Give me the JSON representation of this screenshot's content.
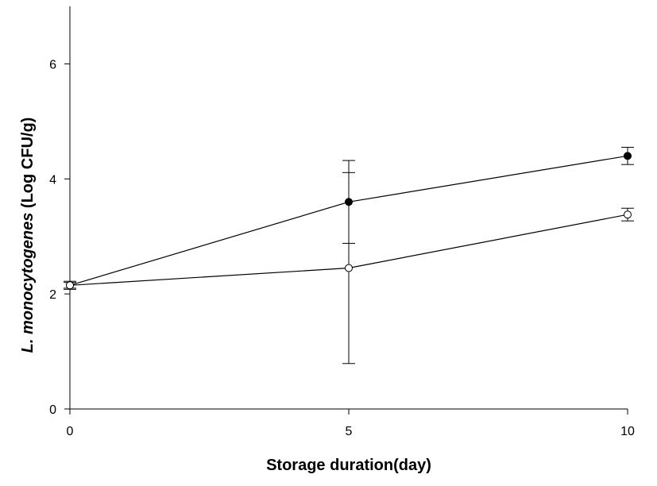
{
  "chart_data": {
    "type": "line",
    "xlabel": "Storage duration(day)",
    "ylabel_italic": "L. monocytogenes",
    "ylabel_rest": " (Log CFU/g)",
    "xlim": [
      0,
      10
    ],
    "ylim": [
      0,
      7
    ],
    "x_ticks": [
      0,
      5,
      10
    ],
    "y_ticks": [
      0,
      2,
      4,
      6
    ],
    "grid": false,
    "legend": "none",
    "series": [
      {
        "marker": "filled-circle",
        "color": "#000000",
        "x": [
          0,
          5,
          10
        ],
        "y": [
          2.15,
          3.6,
          4.4
        ],
        "err": [
          0.05,
          0.72,
          0.15
        ]
      },
      {
        "marker": "open-circle",
        "color": "#000000",
        "x": [
          0,
          5,
          10
        ],
        "y": [
          2.15,
          2.45,
          3.38
        ],
        "err": [
          0.07,
          1.66,
          0.11
        ]
      }
    ]
  }
}
